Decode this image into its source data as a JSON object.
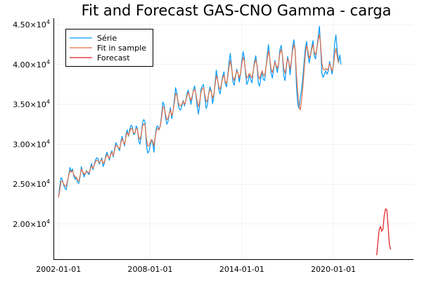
{
  "chart_data": {
    "type": "line",
    "title": "Fit and Forecast GAS-CNO Gamma - carga",
    "xlabel": "",
    "ylabel": "",
    "x_start": "2002-01-01",
    "x_step": "month",
    "xlim": [
      "2001-09-01",
      "2025-04-01"
    ],
    "ylim": [
      15500,
      45800
    ],
    "x_ticks": [
      {
        "date": "2002-01-01",
        "label": "2002-01-01"
      },
      {
        "date": "2008-01-01",
        "label": "2008-01-01"
      },
      {
        "date": "2014-01-01",
        "label": "2014-01-01"
      },
      {
        "date": "2020-01-01",
        "label": "2020-01-01"
      }
    ],
    "y_ticks": [
      {
        "value": 20000,
        "mantissa": "2.00×10",
        "exp": "4"
      },
      {
        "value": 25000,
        "mantissa": "2.50×10",
        "exp": "4"
      },
      {
        "value": 30000,
        "mantissa": "3.00×10",
        "exp": "4"
      },
      {
        "value": 35000,
        "mantissa": "3.50×10",
        "exp": "4"
      },
      {
        "value": 40000,
        "mantissa": "4.00×10",
        "exp": "4"
      },
      {
        "value": 45000,
        "mantissa": "4.50×10",
        "exp": "4"
      }
    ],
    "grid": true,
    "legend_position": "top-left",
    "series": [
      {
        "name": "Série",
        "color": "#009AFA",
        "x_start": "2002-01-01",
        "values": [
          23400,
          24800,
          25800,
          25600,
          24900,
          24500,
          24300,
          25200,
          26200,
          27100,
          26600,
          26900,
          26000,
          25600,
          25900,
          25200,
          25100,
          26000,
          27200,
          26500,
          25900,
          26300,
          26700,
          26400,
          26200,
          27000,
          27600,
          26800,
          27400,
          28000,
          28300,
          28200,
          27500,
          27900,
          28300,
          27200,
          27600,
          28500,
          29000,
          28600,
          28000,
          28800,
          29200,
          28400,
          29400,
          30200,
          29900,
          29500,
          29200,
          30400,
          31000,
          30300,
          29800,
          31200,
          31800,
          31000,
          31900,
          32400,
          32200,
          31200,
          31300,
          32300,
          32000,
          30400,
          30000,
          31000,
          32700,
          33100,
          32800,
          30000,
          28900,
          29100,
          29800,
          30600,
          30200,
          29000,
          31000,
          32200,
          32300,
          31800,
          32400,
          33700,
          35300,
          34900,
          33500,
          32500,
          32800,
          33800,
          34600,
          33200,
          34100,
          35600,
          37100,
          36400,
          35000,
          34400,
          34300,
          34900,
          35500,
          34800,
          35400,
          36400,
          36800,
          35900,
          35000,
          35800,
          36900,
          37300,
          36100,
          34600,
          33800,
          35100,
          36900,
          37300,
          37500,
          35800,
          34500,
          34900,
          36400,
          37200,
          36700,
          35100,
          35900,
          37700,
          39300,
          38200,
          36800,
          36300,
          37500,
          38600,
          39100,
          37600,
          37200,
          38700,
          40300,
          41400,
          39800,
          37900,
          37400,
          38400,
          39400,
          38900,
          37800,
          38800,
          40400,
          41600,
          40900,
          38800,
          37500,
          37900,
          38700,
          38100,
          37700,
          39100,
          40400,
          41100,
          39800,
          37600,
          37300,
          38300,
          39200,
          38100,
          38000,
          39600,
          41200,
          42500,
          40800,
          38900,
          38300,
          39400,
          40500,
          39700,
          39000,
          40100,
          41900,
          42400,
          40900,
          38600,
          38000,
          39600,
          41000,
          40200,
          38700,
          40400,
          42300,
          43100,
          41700,
          37200,
          35000,
          34500,
          35800,
          36900,
          38500,
          40400,
          42100,
          42900,
          41300,
          40200,
          41100,
          42200,
          43000,
          41100,
          40700,
          42100,
          43400,
          44800,
          42300,
          38800,
          38400,
          38800,
          39200,
          38800,
          39200,
          40400,
          39600,
          38800,
          40100,
          42700,
          43700,
          41800,
          40200,
          41200,
          40000
        ]
      },
      {
        "name": "Fit in sample",
        "color": "#E26F46",
        "x_start": "2002-01-01",
        "values": [
          23300,
          24300,
          25300,
          25400,
          25000,
          24800,
          24700,
          25400,
          26100,
          26700,
          26500,
          26700,
          26200,
          25900,
          25900,
          25500,
          25400,
          26100,
          26900,
          26600,
          26200,
          26400,
          26600,
          26500,
          26400,
          26900,
          27300,
          27000,
          27300,
          27800,
          28000,
          27900,
          27700,
          27900,
          28100,
          27600,
          27800,
          28300,
          28700,
          28500,
          28200,
          28700,
          29000,
          28600,
          29200,
          29900,
          29800,
          29600,
          29400,
          30200,
          30700,
          30300,
          30000,
          31000,
          31500,
          31100,
          31600,
          32000,
          31900,
          31400,
          31400,
          32000,
          31900,
          30900,
          30600,
          31200,
          32200,
          32600,
          32400,
          30800,
          29800,
          29800,
          30200,
          30600,
          30400,
          29800,
          30900,
          31800,
          32000,
          31800,
          32300,
          33400,
          34700,
          34600,
          33800,
          33100,
          33200,
          33800,
          34300,
          33600,
          34100,
          35200,
          36400,
          36100,
          35300,
          34900,
          34800,
          35100,
          35400,
          35000,
          35400,
          36100,
          36500,
          36000,
          35500,
          36000,
          36700,
          36900,
          36300,
          35300,
          34700,
          35400,
          36500,
          37000,
          37100,
          36200,
          35300,
          35500,
          36300,
          36900,
          36600,
          35800,
          36200,
          37400,
          38600,
          38100,
          37200,
          36900,
          37600,
          38300,
          38700,
          37900,
          37600,
          38500,
          39700,
          40500,
          39600,
          38400,
          38000,
          38600,
          39200,
          38900,
          38300,
          38900,
          40000,
          40900,
          40500,
          39200,
          38300,
          38500,
          38900,
          38600,
          38300,
          39200,
          40100,
          40600,
          39900,
          38500,
          38200,
          38700,
          39200,
          38700,
          38600,
          39600,
          40700,
          41700,
          40800,
          39500,
          39000,
          39600,
          40300,
          39900,
          39500,
          40200,
          41400,
          41900,
          41100,
          39500,
          38900,
          39800,
          40700,
          40300,
          39400,
          40500,
          41800,
          42500,
          41700,
          38700,
          36400,
          34800,
          34300,
          35500,
          37300,
          39400,
          41300,
          42400,
          41700,
          40800,
          41200,
          41900,
          42500,
          41600,
          41200,
          42000,
          43000,
          43800,
          42600,
          40200,
          39400,
          39300,
          39500,
          39300,
          39500,
          40100,
          39700,
          39200,
          39800,
          41300,
          42000,
          41000,
          40200
        ]
      },
      {
        "name": "Forecast",
        "color": "#E31A1C",
        "x_start": "2022-11-01",
        "values": [
          16100,
          17800,
          19300,
          19700,
          19100,
          19400,
          21100,
          21900,
          21800,
          19800,
          17400,
          16800
        ]
      }
    ]
  }
}
